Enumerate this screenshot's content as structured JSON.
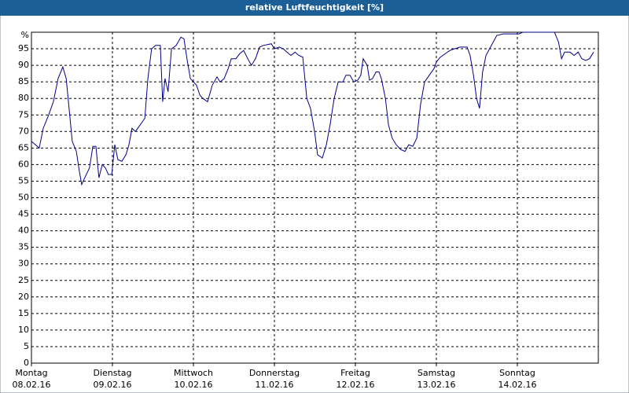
{
  "chart_data": {
    "type": "line",
    "title": "relative Luftfeuchtigkeit [%]",
    "x": [
      0,
      2.3,
      3.5,
      5.1,
      6.5,
      7.9,
      9.3,
      10.3,
      12.1,
      13.3,
      14.2,
      14.9,
      15.8,
      17.2,
      18.2,
      19.1,
      20.0,
      21.0,
      21.9,
      22.8,
      23.8,
      24.7,
      25.6,
      26.8,
      28.0,
      28.9,
      29.8,
      30.8,
      32.2,
      33.6,
      34.5,
      35.6,
      36.8,
      38.2,
      38.9,
      39.6,
      40.5,
      41.5,
      42.9,
      44.3,
      45.2,
      46.1,
      47.1,
      48.0,
      48.9,
      49.9,
      50.8,
      52.2,
      53.6,
      55.0,
      55.9,
      57.1,
      58.3,
      59.2,
      60.6,
      61.7,
      62.9,
      64.1,
      65.2,
      66.4,
      67.6,
      68.7,
      71.1,
      72.0,
      73.4,
      74.6,
      75.7,
      76.9,
      78.1,
      79.2,
      80.4,
      81.6,
      82.7,
      83.9,
      84.8,
      86.2,
      87.4,
      88.5,
      89.7,
      90.9,
      92.3,
      93.2,
      94.4,
      95.5,
      96.7,
      97.6,
      98.3,
      99.5,
      100.2,
      101.1,
      102.1,
      103.0,
      103.7,
      104.9,
      105.8,
      106.9,
      108.1,
      109.5,
      110.7,
      111.8,
      113.0,
      114.2,
      115.3,
      116.5,
      117.9,
      119.3,
      120.0,
      121.2,
      122.6,
      124.0,
      125.4,
      127.0,
      129.1,
      130.0,
      131.0,
      131.9,
      132.8,
      133.7,
      134.7,
      136.3,
      137.9,
      139.8,
      144.5,
      145.6,
      153.8,
      155.0,
      156.2,
      157.1,
      158.0,
      159.6,
      160.8,
      162.0,
      163.1,
      164.3,
      165.4,
      166.6
    ],
    "series": [
      {
        "name": "relative Luftfeuchtigkeit",
        "color": "#00008b",
        "values": [
          67,
          65,
          71,
          75,
          79,
          86,
          89.5,
          86,
          67,
          64,
          58,
          54,
          56,
          59,
          65.5,
          65.5,
          56,
          60,
          59,
          57,
          57,
          66,
          61.5,
          61,
          63,
          66,
          71,
          70,
          72,
          74,
          86,
          95,
          96,
          96,
          79,
          86,
          82,
          95,
          96,
          98.5,
          98,
          92,
          86,
          85,
          84,
          81,
          80,
          79,
          84,
          86.5,
          85,
          86,
          89,
          92,
          92,
          93.5,
          94.5,
          92,
          90,
          92,
          95.5,
          96,
          96.5,
          95,
          95.5,
          95,
          94,
          93,
          94,
          93,
          92.5,
          80,
          77,
          70,
          63,
          62,
          66,
          72,
          80,
          85,
          85,
          87,
          87,
          85,
          85.5,
          87,
          92,
          90,
          85.5,
          86,
          88,
          88,
          86,
          80,
          72,
          68,
          66,
          64.5,
          64,
          66,
          65.5,
          68,
          78,
          85,
          87,
          89,
          91,
          92.5,
          93.5,
          94.5,
          95,
          95.5,
          95.5,
          93,
          87,
          80,
          77,
          88,
          93,
          96,
          99,
          99.5,
          99.5,
          100,
          100,
          100,
          97,
          92,
          94,
          94,
          93,
          94,
          92,
          91.5,
          92,
          94
        ]
      }
    ],
    "xlim": [
      0,
      168
    ],
    "xticks": [
      {
        "value": 0,
        "label": "Montag",
        "date": "08.02.16"
      },
      {
        "value": 24,
        "label": "Dienstag",
        "date": "09.02.16"
      },
      {
        "value": 48,
        "label": "Mittwoch",
        "date": "10.02.16"
      },
      {
        "value": 72,
        "label": "Donnerstag",
        "date": "11.02.16"
      },
      {
        "value": 96,
        "label": "Freitag",
        "date": "12.02.16"
      },
      {
        "value": 120,
        "label": "Samstag",
        "date": "13.02.16"
      },
      {
        "value": 144,
        "label": "Sonntag",
        "date": "14.02.16"
      }
    ],
    "ylim": [
      0,
      100
    ],
    "yticks": [
      0,
      5,
      10,
      15,
      20,
      25,
      30,
      35,
      40,
      45,
      50,
      55,
      60,
      65,
      70,
      75,
      80,
      85,
      90,
      95,
      {
        "value": 100,
        "label": "%"
      }
    ],
    "grid": true
  }
}
